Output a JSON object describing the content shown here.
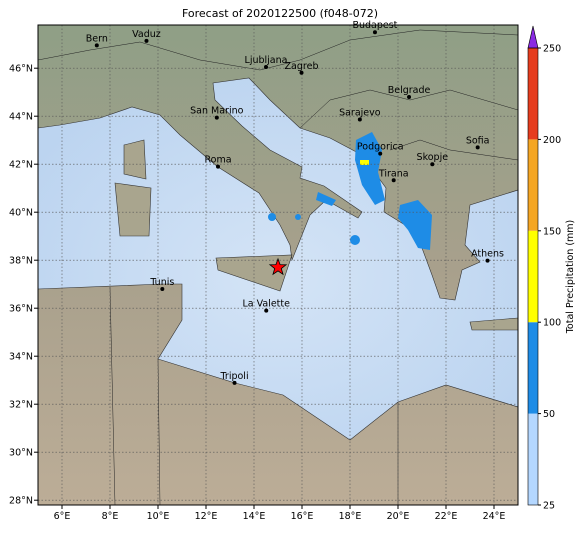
{
  "title": "Forecast of 2020122500 (f048-072)",
  "map": {
    "lon_range": [
      5,
      25
    ],
    "lat_range": [
      27.8,
      47.8
    ],
    "lon_ticks": [
      {
        "value": 6,
        "label": "6°E"
      },
      {
        "value": 8,
        "label": "8°E"
      },
      {
        "value": 10,
        "label": "10°E"
      },
      {
        "value": 12,
        "label": "12°E"
      },
      {
        "value": 14,
        "label": "14°E"
      },
      {
        "value": 16,
        "label": "16°E"
      },
      {
        "value": 18,
        "label": "18°E"
      },
      {
        "value": 20,
        "label": "20°E"
      },
      {
        "value": 22,
        "label": "22°E"
      },
      {
        "value": 24,
        "label": "24°E"
      }
    ],
    "lat_ticks": [
      {
        "value": 28,
        "label": "28°N"
      },
      {
        "value": 30,
        "label": "30°N"
      },
      {
        "value": 32,
        "label": "32°N"
      },
      {
        "value": 34,
        "label": "34°N"
      },
      {
        "value": 36,
        "label": "36°N"
      },
      {
        "value": 38,
        "label": "38°N"
      },
      {
        "value": 40,
        "label": "40°N"
      },
      {
        "value": 42,
        "label": "42°N"
      },
      {
        "value": 44,
        "label": "44°N"
      },
      {
        "value": 46,
        "label": "46°N"
      }
    ],
    "cities": [
      {
        "name": "Bern",
        "lon": 7.45,
        "lat": 46.95
      },
      {
        "name": "Vaduz",
        "lon": 9.52,
        "lat": 47.14
      },
      {
        "name": "Budapest",
        "lon": 19.04,
        "lat": 47.5
      },
      {
        "name": "Ljubljana",
        "lon": 14.5,
        "lat": 46.05
      },
      {
        "name": "Zagreb",
        "lon": 15.98,
        "lat": 45.81
      },
      {
        "name": "Belgrade",
        "lon": 20.46,
        "lat": 44.8
      },
      {
        "name": "Sarajevo",
        "lon": 18.41,
        "lat": 43.86
      },
      {
        "name": "San Marino",
        "lon": 12.45,
        "lat": 43.94
      },
      {
        "name": "Roma",
        "lon": 12.5,
        "lat": 41.9
      },
      {
        "name": "Podgorica",
        "lon": 19.26,
        "lat": 42.44
      },
      {
        "name": "Skopje",
        "lon": 21.43,
        "lat": 42.0
      },
      {
        "name": "Sofia",
        "lon": 23.32,
        "lat": 42.7
      },
      {
        "name": "Tirana",
        "lon": 19.82,
        "lat": 41.33
      },
      {
        "name": "Athens",
        "lon": 23.73,
        "lat": 37.98
      },
      {
        "name": "Tunis",
        "lon": 10.18,
        "lat": 36.8
      },
      {
        "name": "La Valette",
        "lon": 14.51,
        "lat": 35.9
      },
      {
        "name": "Tripoli",
        "lon": 13.19,
        "lat": 32.89
      }
    ],
    "marker": {
      "lon": 15.0,
      "lat": 37.7,
      "color": "#ff0000"
    }
  },
  "colorbar": {
    "label": "Total Precipitation (mm)",
    "levels": [
      25,
      50,
      100,
      150,
      200,
      250
    ],
    "colors": [
      "#b4d7ff",
      "#1e8ce6",
      "#ffff00",
      "#f5a623",
      "#e63c1e"
    ],
    "extend_color": "#8a2be2"
  }
}
